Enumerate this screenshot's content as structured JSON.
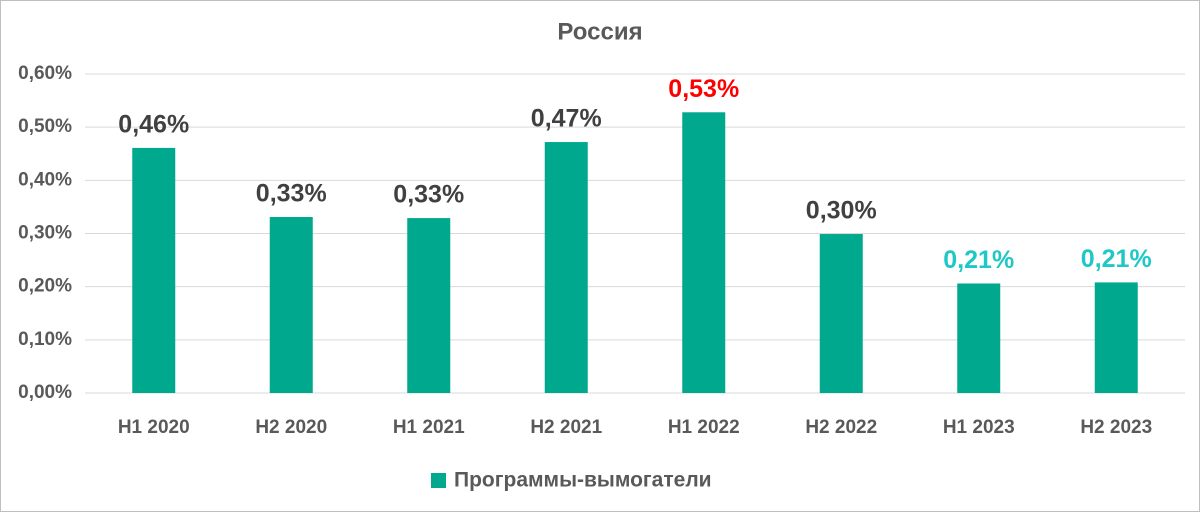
{
  "chart_data": {
    "type": "bar",
    "title": "Россия",
    "categories": [
      "H1 2020",
      "H2 2020",
      "H1 2021",
      "H2 2021",
      "H1 2022",
      "H2 2022",
      "H1 2023",
      "H2 2023"
    ],
    "series": [
      {
        "name": "Программы-вымогатели",
        "color": "#00a88e",
        "values": [
          0.461,
          0.331,
          0.329,
          0.472,
          0.528,
          0.299,
          0.206,
          0.208
        ],
        "value_labels": [
          "0,46%",
          "0,33%",
          "0,33%",
          "0,47%",
          "0,53%",
          "0,30%",
          "0,21%",
          "0,21%"
        ],
        "value_label_colors": [
          "#404040",
          "#404040",
          "#404040",
          "#404040",
          "#ff0000",
          "#404040",
          "#1fc7c7",
          "#1fc7c7"
        ]
      }
    ],
    "ylim": [
      0,
      0.6
    ],
    "yticks": [
      {
        "value": 0,
        "label": "0,00%"
      },
      {
        "value": 0.1,
        "label": "0,10%"
      },
      {
        "value": 0.2,
        "label": "0,20%"
      },
      {
        "value": 0.3,
        "label": "0,30%"
      },
      {
        "value": 0.4,
        "label": "0,40%"
      },
      {
        "value": 0.5,
        "label": "0,50%"
      },
      {
        "value": 0.6,
        "label": "0,60%"
      }
    ],
    "grid": true,
    "legend": "bottom"
  }
}
